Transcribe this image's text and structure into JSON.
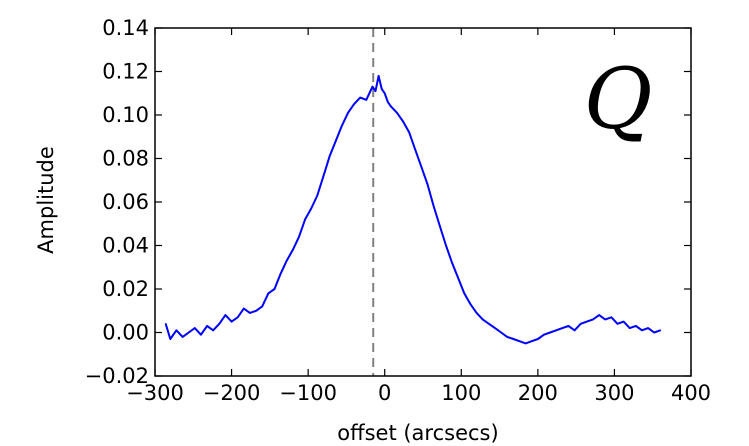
{
  "chart_data": {
    "type": "line",
    "title": "",
    "xlabel": "offset (arcsecs)",
    "ylabel": "Amplitude",
    "xlim": [
      -300,
      400
    ],
    "ylim": [
      -0.02,
      0.14
    ],
    "xticks": [
      -300,
      -200,
      -100,
      0,
      100,
      200,
      300,
      400
    ],
    "xtick_labels": [
      "−300",
      "−200",
      "−100",
      "0",
      "100",
      "200",
      "300",
      "400"
    ],
    "yticks": [
      -0.02,
      0.0,
      0.02,
      0.04,
      0.06,
      0.08,
      0.1,
      0.12,
      0.14
    ],
    "ytick_labels": [
      "−0.02",
      "0.00",
      "0.02",
      "0.04",
      "0.06",
      "0.08",
      "0.10",
      "0.12",
      "0.14"
    ],
    "grid": false,
    "annotation": "Q",
    "vline": {
      "x": -15,
      "style": "dashed",
      "color": "#808080"
    },
    "series": [
      {
        "color": "#0000ff",
        "x": [
          -286,
          -280,
          -272,
          -264,
          -256,
          -248,
          -240,
          -232,
          -224,
          -216,
          -208,
          -200,
          -192,
          -184,
          -176,
          -168,
          -160,
          -152,
          -144,
          -136,
          -128,
          -120,
          -112,
          -104,
          -96,
          -88,
          -80,
          -72,
          -64,
          -56,
          -48,
          -40,
          -32,
          -24,
          -16,
          -12,
          -8,
          -4,
          0,
          4,
          8,
          16,
          24,
          32,
          40,
          48,
          56,
          64,
          72,
          80,
          88,
          96,
          104,
          112,
          120,
          128,
          136,
          144,
          152,
          160,
          168,
          176,
          184,
          192,
          200,
          208,
          216,
          224,
          232,
          240,
          248,
          256,
          264,
          272,
          280,
          288,
          296,
          304,
          312,
          320,
          328,
          336,
          344,
          352,
          360
        ],
        "y": [
          0.004,
          -0.003,
          0.001,
          -0.002,
          0.0,
          0.002,
          -0.001,
          0.003,
          0.001,
          0.004,
          0.008,
          0.005,
          0.007,
          0.011,
          0.009,
          0.01,
          0.012,
          0.018,
          0.02,
          0.027,
          0.033,
          0.038,
          0.044,
          0.052,
          0.057,
          0.063,
          0.072,
          0.081,
          0.088,
          0.095,
          0.101,
          0.105,
          0.108,
          0.107,
          0.113,
          0.111,
          0.118,
          0.112,
          0.11,
          0.106,
          0.104,
          0.101,
          0.097,
          0.092,
          0.084,
          0.076,
          0.068,
          0.058,
          0.049,
          0.04,
          0.032,
          0.025,
          0.018,
          0.013,
          0.009,
          0.006,
          0.004,
          0.002,
          0.0,
          -0.002,
          -0.003,
          -0.004,
          -0.005,
          -0.004,
          -0.003,
          -0.001,
          0.0,
          0.001,
          0.002,
          0.003,
          0.001,
          0.004,
          0.005,
          0.006,
          0.008,
          0.006,
          0.007,
          0.004,
          0.005,
          0.002,
          0.003,
          0.001,
          0.002,
          0.0,
          0.001
        ]
      }
    ]
  }
}
